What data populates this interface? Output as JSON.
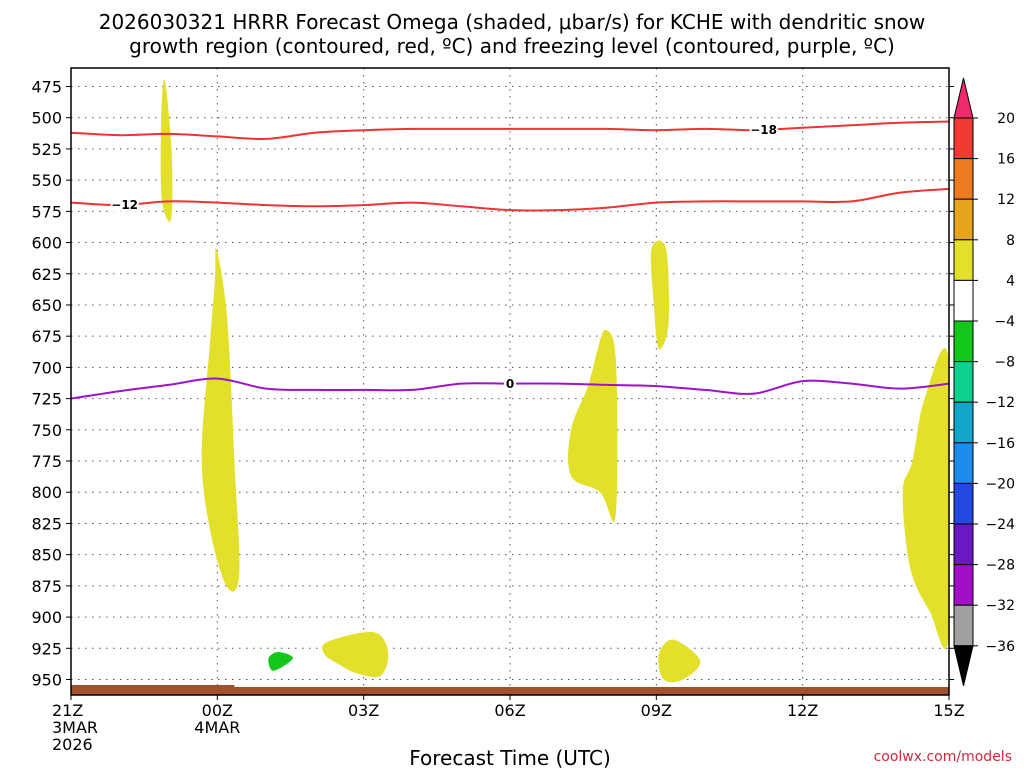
{
  "chart_data": {
    "type": "heatmap",
    "title_lines": [
      "2026030321 HRRR Forecast Omega (shaded, μbar/s) for KCHE with dendritic snow",
      "growth region (contoured, red, ºC) and freezing level (contoured, purple, ºC)"
    ],
    "xlabel": "Forecast Time (UTC)",
    "ylabel": "",
    "x_range_hours": [
      0,
      18
    ],
    "x_ticks": [
      {
        "h": 0,
        "lines": [
          "21Z",
          "3MAR",
          "2026"
        ]
      },
      {
        "h": 3,
        "lines": [
          "00Z",
          "4MAR"
        ]
      },
      {
        "h": 6,
        "lines": [
          "03Z"
        ]
      },
      {
        "h": 9,
        "lines": [
          "06Z"
        ]
      },
      {
        "h": 12,
        "lines": [
          "09Z"
        ]
      },
      {
        "h": 15,
        "lines": [
          "12Z"
        ]
      },
      {
        "h": 18,
        "lines": [
          "15Z"
        ]
      }
    ],
    "y_axis": {
      "units": "hPa",
      "inverted": true,
      "range": [
        465,
        960
      ],
      "ticks": [
        475,
        500,
        525,
        550,
        575,
        600,
        625,
        650,
        675,
        700,
        725,
        750,
        775,
        800,
        825,
        850,
        875,
        900,
        925,
        950
      ]
    },
    "colorbar": {
      "labels": [
        20,
        16,
        12,
        8,
        4,
        -4,
        -8,
        -12,
        -16,
        -20,
        -24,
        -28,
        -32,
        -36
      ],
      "colors_top_to_bottom": [
        "#ee2a6a",
        "#f33a32",
        "#ee7a22",
        "#e6a51d",
        "#e3e02c",
        "#ffffff",
        "#13c81b",
        "#0fd08d",
        "#12a6c8",
        "#1f8ced",
        "#2448e2",
        "#6a18c2",
        "#a30fc7",
        "#a0a0a0",
        "#000000"
      ]
    },
    "omega_shaded_regions": [
      {
        "value_bin": "4 to 8",
        "color": "#e3e02c",
        "outline": [
          [
            1.92,
            470
          ],
          [
            2.06,
            525
          ],
          [
            2.07,
            575
          ],
          [
            1.98,
            582
          ],
          [
            1.85,
            560
          ],
          [
            1.85,
            500
          ]
        ]
      },
      {
        "value_bin": "4 to 8",
        "color": "#e3e02c",
        "outline": [
          [
            2.98,
            605
          ],
          [
            3.2,
            660
          ],
          [
            3.35,
            775
          ],
          [
            3.45,
            865
          ],
          [
            3.2,
            876
          ],
          [
            2.85,
            830
          ],
          [
            2.68,
            770
          ],
          [
            2.85,
            680
          ],
          [
            2.95,
            630
          ]
        ]
      },
      {
        "value_bin": "4 to 8",
        "color": "#e3e02c",
        "outline": [
          [
            11.9,
            605
          ],
          [
            12.2,
            605
          ],
          [
            12.25,
            665
          ],
          [
            12.05,
            685
          ],
          [
            11.95,
            650
          ]
        ]
      },
      {
        "value_bin": "4 to 8",
        "color": "#e3e02c",
        "outline": [
          [
            10.95,
            670
          ],
          [
            11.15,
            685
          ],
          [
            11.2,
            750
          ],
          [
            11.15,
            822
          ],
          [
            10.85,
            800
          ],
          [
            10.25,
            787
          ],
          [
            10.25,
            750
          ],
          [
            10.6,
            715
          ],
          [
            10.8,
            685
          ]
        ]
      },
      {
        "value_bin": "4 to 8",
        "color": "#e3e02c",
        "outline": [
          [
            18,
            695
          ],
          [
            18,
            913
          ],
          [
            17.6,
            895
          ],
          [
            17.2,
            860
          ],
          [
            17.05,
            800
          ],
          [
            17.25,
            775
          ],
          [
            17.5,
            725
          ]
        ]
      },
      {
        "value_bin": "4 to 8",
        "color": "#e3e02c",
        "outline": [
          [
            5.25,
            920
          ],
          [
            6.2,
            912
          ],
          [
            6.5,
            928
          ],
          [
            6.35,
            947
          ],
          [
            5.85,
            945
          ],
          [
            5.5,
            938
          ],
          [
            5.2,
            930
          ]
        ]
      },
      {
        "value_bin": "4 to 8",
        "color": "#e3e02c",
        "outline": [
          [
            12.35,
            918
          ],
          [
            12.9,
            935
          ],
          [
            12.55,
            950
          ],
          [
            12.15,
            950
          ],
          [
            12.05,
            930
          ]
        ]
      },
      {
        "value_bin": "-4 to -8",
        "color": "#13c81b",
        "outline": [
          [
            4.25,
            928
          ],
          [
            4.55,
            933
          ],
          [
            4.15,
            943
          ],
          [
            4.05,
            933
          ]
        ]
      }
    ],
    "contours": [
      {
        "name": "-18 ºC isotherm",
        "value": -18,
        "label": "−18",
        "color": "#ee3434",
        "label_at_h": 14.2,
        "x": [
          0,
          1,
          2,
          3,
          4,
          5,
          6,
          7,
          8,
          9,
          10,
          11,
          12,
          13,
          14,
          15,
          16,
          17,
          18
        ],
        "p": [
          512,
          514,
          513,
          515,
          517,
          512,
          510,
          509,
          509,
          509,
          509,
          509,
          510,
          509,
          510,
          508,
          506,
          504,
          503
        ]
      },
      {
        "name": "-12 ºC isotherm",
        "value": -12,
        "label": "−12",
        "color": "#ee3434",
        "label_at_h": 1.1,
        "x": [
          0,
          1,
          2,
          3,
          4,
          5,
          6,
          7,
          8,
          9,
          10,
          11,
          12,
          13,
          14,
          15,
          16,
          17,
          18
        ],
        "p": [
          568,
          570,
          567,
          568,
          570,
          571,
          570,
          568,
          571,
          574,
          574,
          572,
          568,
          567,
          567,
          567,
          567,
          560,
          557
        ]
      },
      {
        "name": "0 ºC freezing level",
        "value": 0,
        "label": "0",
        "color": "#9a16c8",
        "label_at_h": 9,
        "x": [
          0,
          1,
          2,
          3,
          4,
          5,
          6,
          7,
          8,
          9,
          10,
          11,
          12,
          13,
          14,
          15,
          16,
          17,
          18
        ],
        "p": [
          725,
          719,
          714,
          709,
          717,
          718,
          718,
          718,
          713,
          713,
          713,
          714,
          715,
          718,
          721,
          711,
          713,
          717,
          713
        ]
      }
    ],
    "terrain": {
      "color": "#a0522d",
      "surface_hpa": 956
    }
  },
  "watermark": "coolwx.com/models"
}
